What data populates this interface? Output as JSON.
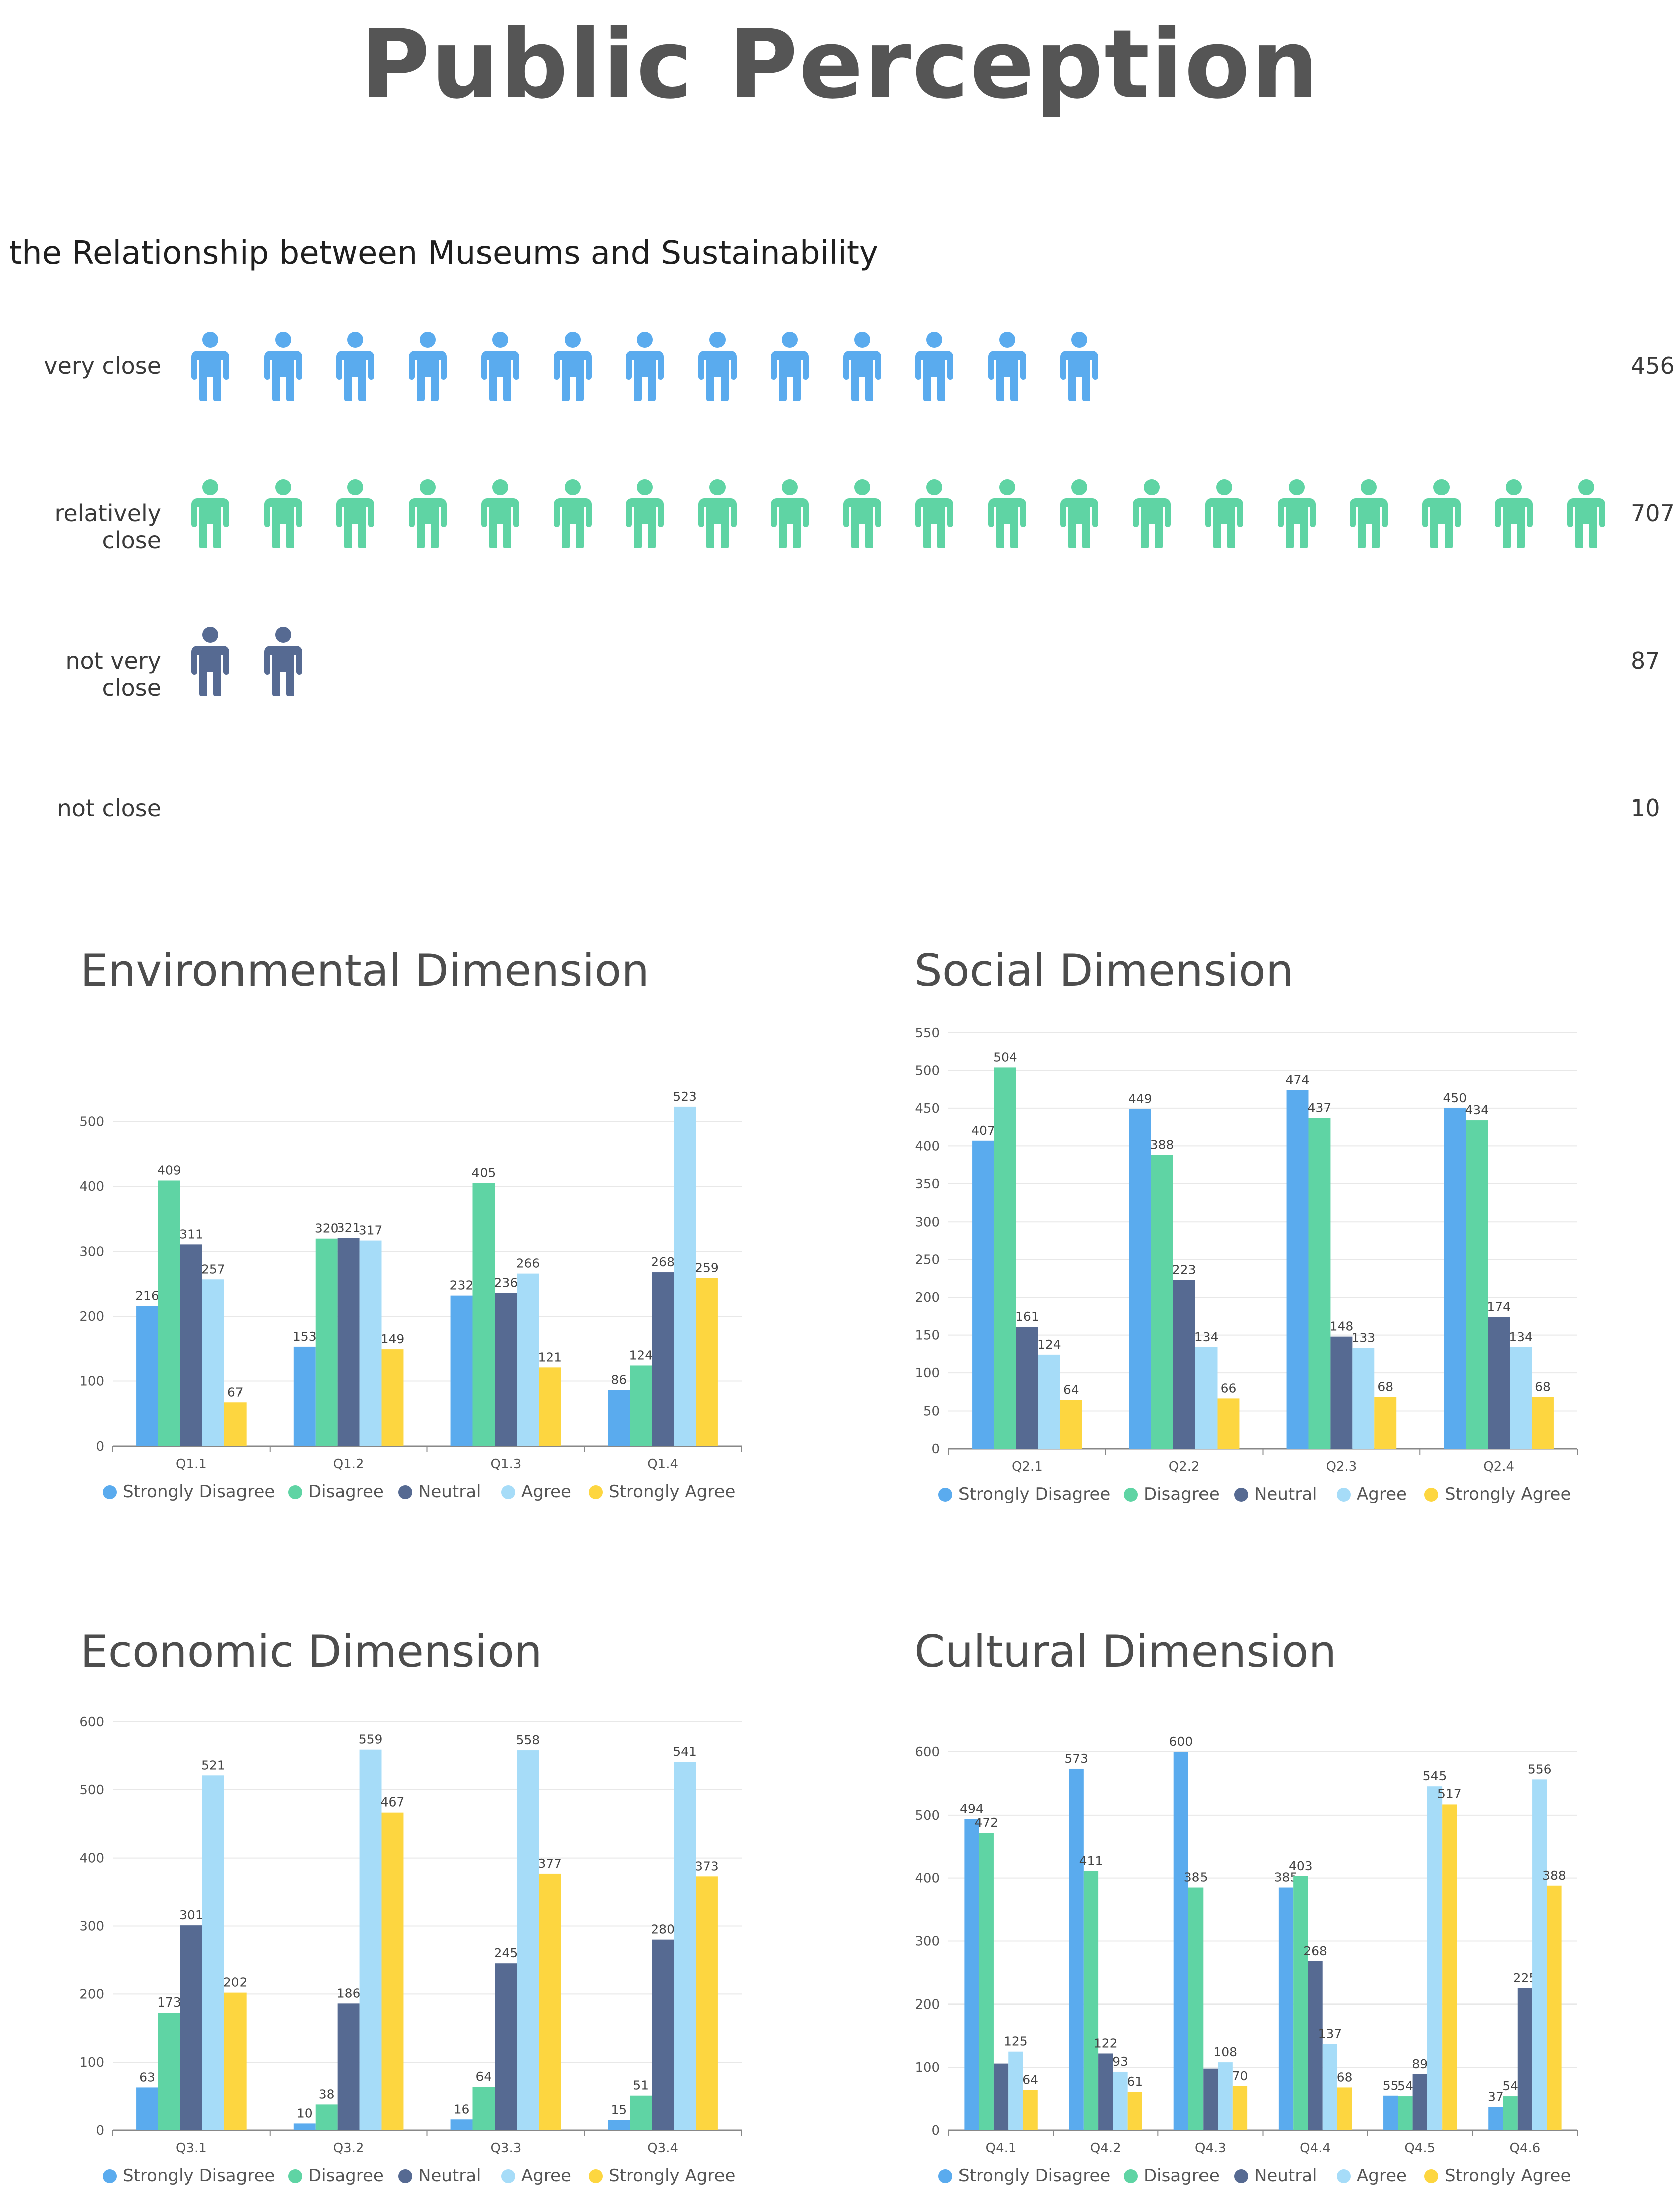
{
  "title": "Public Perception",
  "pictograph": {
    "title": "the Relationship between Museums and Sustainability",
    "rows": [
      {
        "label": "very close",
        "value": "456",
        "icons": 13,
        "color": "#5aabee"
      },
      {
        "label": "relatively close",
        "value": "707",
        "icons": 20,
        "color": "#5fd4a4"
      },
      {
        "label": "not very close",
        "value": "87",
        "icons": 2,
        "color": "#566a92"
      },
      {
        "label": "not close",
        "value": "10",
        "icons": 0,
        "color": "#566a92"
      }
    ]
  },
  "colors": {
    "Strongly Disagree": "#5aabee",
    "Disagree": "#5fd4a4",
    "Neutral": "#566a92",
    "Agree": "#a6dcf8",
    "Strongly Agree": "#fdd640"
  },
  "chart_data": [
    {
      "type": "bar",
      "title": "Environmental Dimension",
      "categories": [
        "Q1.1",
        "Q1.2",
        "Q1.3",
        "Q1.4"
      ],
      "yticks": [
        0,
        100,
        200,
        300,
        400,
        500
      ],
      "ylim": [
        0,
        560
      ],
      "series": [
        {
          "name": "Strongly Disagree",
          "values": [
            216,
            153,
            232,
            86
          ]
        },
        {
          "name": "Disagree",
          "values": [
            409,
            320,
            405,
            124
          ]
        },
        {
          "name": "Neutral",
          "values": [
            311,
            321,
            236,
            268
          ]
        },
        {
          "name": "Agree",
          "values": [
            257,
            317,
            266,
            523
          ]
        },
        {
          "name": "Strongly Agree",
          "values": [
            67,
            149,
            121,
            259
          ]
        }
      ]
    },
    {
      "type": "bar",
      "title": "Social Dimension",
      "categories": [
        "Q2.1",
        "Q2.2",
        "Q2.3",
        "Q2.4"
      ],
      "yticks": [
        0,
        50,
        100,
        150,
        200,
        250,
        300,
        350,
        400,
        450,
        500,
        550
      ],
      "ylim": [
        0,
        550
      ],
      "series": [
        {
          "name": "Strongly Disagree",
          "values": [
            407,
            449,
            474,
            450
          ]
        },
        {
          "name": "Disagree",
          "values": [
            504,
            388,
            437,
            434
          ]
        },
        {
          "name": "Neutral",
          "values": [
            161,
            223,
            148,
            174
          ]
        },
        {
          "name": "Agree",
          "values": [
            124,
            134,
            133,
            134
          ]
        },
        {
          "name": "Strongly Agree",
          "values": [
            64,
            66,
            68,
            68
          ]
        }
      ]
    },
    {
      "type": "bar",
      "title": "Economic Dimension",
      "categories": [
        "Q3.1",
        "Q3.2",
        "Q3.3",
        "Q3.4"
      ],
      "yticks": [
        0,
        100,
        200,
        300,
        400,
        500,
        600
      ],
      "ylim": [
        0,
        600
      ],
      "series": [
        {
          "name": "Strongly Disagree",
          "values": [
            63,
            10,
            16,
            15
          ]
        },
        {
          "name": "Disagree",
          "values": [
            173,
            38,
            64,
            51
          ]
        },
        {
          "name": "Neutral",
          "values": [
            301,
            186,
            245,
            280
          ]
        },
        {
          "name": "Agree",
          "values": [
            521,
            559,
            558,
            541
          ]
        },
        {
          "name": "Strongly Agree",
          "values": [
            202,
            467,
            377,
            373
          ]
        }
      ]
    },
    {
      "type": "bar",
      "title": "Cultural Dimension",
      "categories": [
        "Q4.1",
        "Q4.2",
        "Q4.3",
        "Q4.4",
        "Q4.5",
        "Q4.6"
      ],
      "yticks": [
        0,
        100,
        200,
        300,
        400,
        500,
        600
      ],
      "ylim": [
        0,
        600
      ],
      "series": [
        {
          "name": "Strongly Disagree",
          "values": [
            494,
            573,
            600,
            385,
            55,
            37
          ]
        },
        {
          "name": "Disagree",
          "values": [
            472,
            411,
            385,
            403,
            54,
            54
          ]
        },
        {
          "name": "Neutral",
          "values": [
            106,
            122,
            98,
            268,
            89,
            225
          ]
        },
        {
          "name": "Agree",
          "values": [
            125,
            93,
            108,
            137,
            545,
            556
          ]
        },
        {
          "name": "Strongly Agree",
          "values": [
            64,
            61,
            70,
            68,
            517,
            388
          ]
        }
      ],
      "hidden_labels": [
        [
          0,
          2
        ],
        [
          2,
          2
        ]
      ]
    }
  ]
}
